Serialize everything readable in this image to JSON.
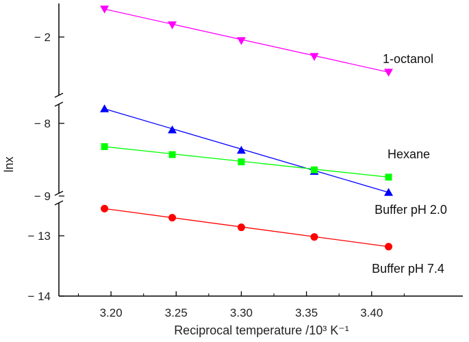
{
  "chart_data": {
    "type": "scatter",
    "title": "",
    "xlabel": "Reciprocal temperature /10³ K⁻¹",
    "ylabel": "lnx",
    "xlim": [
      3.16,
      3.47
    ],
    "x_ticks": [
      "3.20",
      "3.25",
      "3.30",
      "3.35",
      "3.40"
    ],
    "y_ticks": [
      "− 2",
      "− 8",
      "− 9",
      "− 13",
      "− 14"
    ],
    "broken_y_axis": true,
    "grid": false,
    "series": [
      {
        "name": "1-octanol",
        "marker": "triangle-down",
        "color": "#ff00ff",
        "x": [
          3.195,
          3.247,
          3.3,
          3.356,
          3.413
        ],
        "y": [
          -1.54,
          -1.8,
          -2.06,
          -2.32,
          -2.58
        ]
      },
      {
        "name": "Hexane",
        "marker": "triangle-up",
        "color": "#0000ff",
        "x": [
          3.195,
          3.247,
          3.3,
          3.356,
          3.413
        ],
        "y": [
          -7.8,
          -8.09,
          -8.37,
          -8.66,
          -8.95
        ]
      },
      {
        "name": "Buffer pH 2.0",
        "marker": "square",
        "color": "#00ff00",
        "x": [
          3.195,
          3.247,
          3.3,
          3.356,
          3.413
        ],
        "y": [
          -8.32,
          -8.43,
          -8.53,
          -8.64,
          -8.74
        ]
      },
      {
        "name": "Buffer pH 7.4",
        "marker": "circle",
        "color": "#ff0000",
        "x": [
          3.195,
          3.247,
          3.3,
          3.356,
          3.413
        ],
        "y": [
          -12.55,
          -12.7,
          -12.86,
          -13.02,
          -13.18
        ]
      }
    ]
  }
}
